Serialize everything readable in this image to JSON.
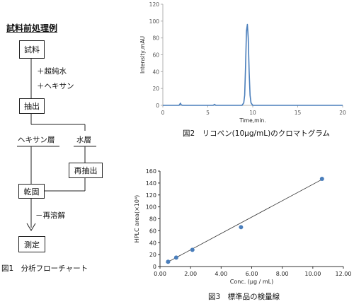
{
  "flowchart": {
    "title": "試料前処理例",
    "boxes": {
      "sample": "試料",
      "extract": "抽出",
      "reextract": "再抽出",
      "dry": "乾固",
      "measure": "測定"
    },
    "labels": {
      "add_water": "＋超純水",
      "add_hexane": "＋ヘキサン",
      "hexane_layer": "ヘキサン層",
      "water_layer": "水層",
      "redissolve": "－再溶解"
    },
    "caption": "図1　分析フローチャート"
  },
  "chart_data": [
    {
      "type": "line",
      "title": "",
      "caption": "図2　リコペン(10μg/mL)のクロマトグラム",
      "xlabel": "Time,min.",
      "ylabel": "Intensity,mAU",
      "xlim": [
        0,
        20
      ],
      "ylim": [
        0,
        120
      ],
      "xticks": [
        0,
        5,
        10,
        15,
        20
      ],
      "yticks": [
        0,
        20,
        40,
        60,
        80,
        100,
        120
      ],
      "grid": false,
      "color": "#4a7ebb",
      "series": [
        {
          "x": [
            0,
            1.8,
            1.95,
            2.05,
            2.2,
            5.6,
            5.75,
            5.9,
            8.8,
            9.0,
            9.1,
            9.2,
            9.3,
            9.4,
            9.5,
            9.6,
            9.7,
            9.8,
            10.0,
            20
          ],
          "values": [
            0,
            0,
            2.5,
            0.5,
            0,
            0,
            1.2,
            0,
            0,
            3,
            12,
            45,
            88,
            96,
            80,
            40,
            12,
            3,
            0,
            0
          ]
        }
      ]
    },
    {
      "type": "scatter",
      "title": "",
      "caption": "図3　標準品の検量線",
      "xlabel": "Conc. (μg / mL)",
      "ylabel": "HPLC area(×10⁴)",
      "xlim": [
        0,
        12
      ],
      "ylim": [
        0,
        160
      ],
      "xticks": [
        "0.00",
        "2.00",
        "4.00",
        "6.00",
        "8.00",
        "10.00",
        "12.00"
      ],
      "yticks": [
        0,
        20,
        40,
        60,
        80,
        100,
        120,
        140,
        160
      ],
      "grid": false,
      "color": "#4a7ebb",
      "points": {
        "x": [
          0.53,
          1.06,
          2.12,
          5.3,
          10.6
        ],
        "y": [
          8,
          15,
          28,
          66,
          147
        ]
      },
      "trendline": {
        "x": [
          0.4,
          10.6
        ],
        "y": [
          6,
          146
        ]
      }
    }
  ]
}
